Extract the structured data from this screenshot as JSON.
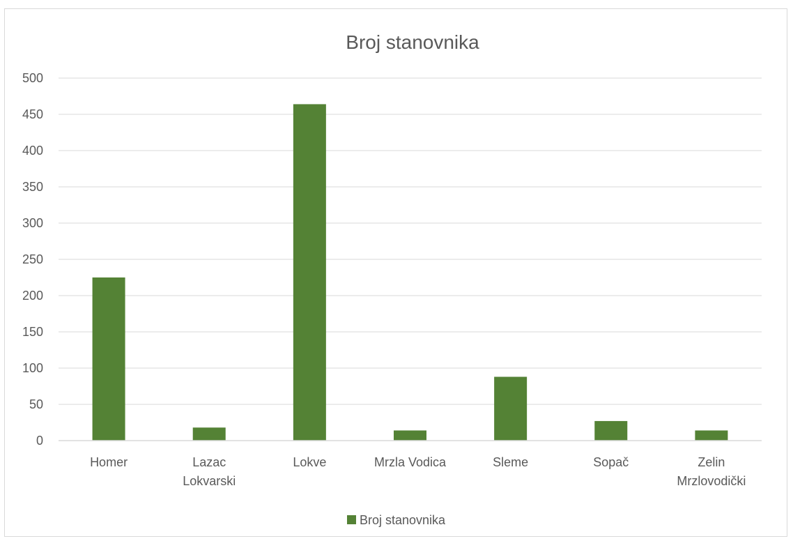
{
  "chart_data": {
    "type": "bar",
    "title": "Broj stanovnika",
    "categories": [
      [
        "Homer"
      ],
      [
        "Lazac",
        "Lokvarski"
      ],
      [
        "Lokve"
      ],
      [
        "Mrzla Vodica"
      ],
      [
        "Sleme"
      ],
      [
        "Sopač"
      ],
      [
        "Zelin",
        "Mrzlovodički"
      ]
    ],
    "series": [
      {
        "name": "Broj stanovnika",
        "color": "#548235",
        "values": [
          225,
          18,
          464,
          14,
          88,
          27,
          14
        ]
      }
    ],
    "ylim": [
      0,
      500
    ],
    "yticks": [
      "0",
      "50",
      "100",
      "150",
      "200",
      "250",
      "300",
      "350",
      "400",
      "450",
      "500"
    ],
    "grid": true,
    "legend_position": "bottom",
    "xlabel": "",
    "ylabel": ""
  }
}
